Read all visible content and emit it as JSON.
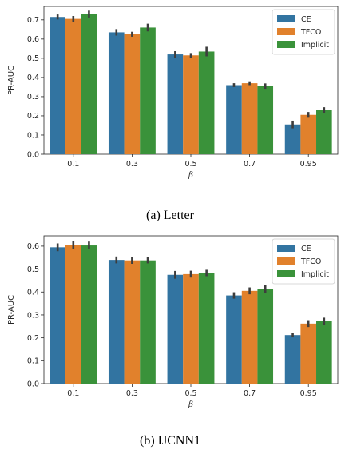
{
  "chart_data": [
    {
      "type": "bar",
      "caption": "(a) Letter",
      "xlabel": "β",
      "ylabel": "PR-AUC",
      "ylim": [
        0,
        0.77
      ],
      "yticks": [
        "0.0",
        "0.1",
        "0.2",
        "0.3",
        "0.4",
        "0.5",
        "0.6",
        "0.7"
      ],
      "categories": [
        "0.1",
        "0.3",
        "0.5",
        "0.7",
        "0.95"
      ],
      "legend_position": "top-right",
      "series": [
        {
          "name": "CE",
          "color": "#3274a1",
          "values": [
            0.715,
            0.635,
            0.52,
            0.36,
            0.155
          ],
          "errors": [
            0.013,
            0.017,
            0.017,
            0.01,
            0.02
          ]
        },
        {
          "name": "TFCO",
          "color": "#e1812c",
          "values": [
            0.705,
            0.625,
            0.515,
            0.37,
            0.205
          ],
          "errors": [
            0.015,
            0.013,
            0.012,
            0.01,
            0.015
          ]
        },
        {
          "name": "Implicit",
          "color": "#3a923a",
          "values": [
            0.73,
            0.66,
            0.535,
            0.355,
            0.23
          ],
          "errors": [
            0.018,
            0.02,
            0.025,
            0.014,
            0.015
          ]
        }
      ]
    },
    {
      "type": "bar",
      "caption": "(b) IJCNN1",
      "xlabel": "β",
      "ylabel": "PR-AUC",
      "ylim": [
        0,
        0.645
      ],
      "yticks": [
        "0.0",
        "0.1",
        "0.2",
        "0.3",
        "0.4",
        "0.5",
        "0.6"
      ],
      "categories": [
        "0.1",
        "0.3",
        "0.5",
        "0.7",
        "0.95"
      ],
      "legend_position": "top-right",
      "series": [
        {
          "name": "CE",
          "color": "#3274a1",
          "values": [
            0.595,
            0.54,
            0.475,
            0.385,
            0.212
          ],
          "errors": [
            0.017,
            0.015,
            0.017,
            0.014,
            0.01
          ]
        },
        {
          "name": "TFCO",
          "color": "#e1812c",
          "values": [
            0.605,
            0.538,
            0.478,
            0.405,
            0.262
          ],
          "errors": [
            0.017,
            0.015,
            0.015,
            0.015,
            0.015
          ]
        },
        {
          "name": "Implicit",
          "color": "#3a923a",
          "values": [
            0.603,
            0.538,
            0.483,
            0.412,
            0.273
          ],
          "errors": [
            0.017,
            0.013,
            0.014,
            0.017,
            0.015
          ]
        }
      ]
    }
  ]
}
